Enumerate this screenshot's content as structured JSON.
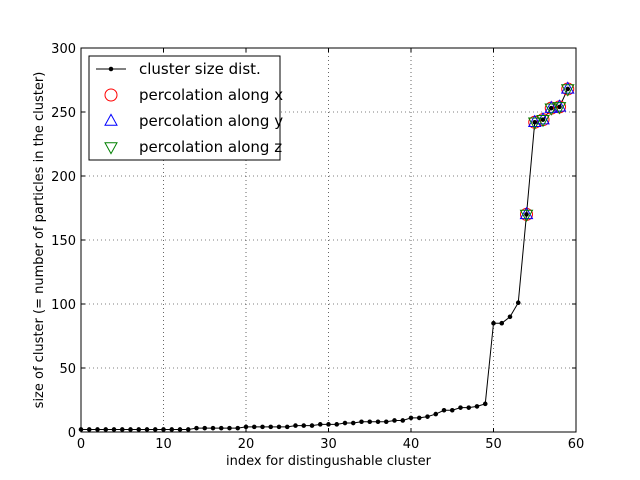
{
  "chart_data": {
    "type": "line",
    "xlabel": "index for distingushable cluster",
    "ylabel": "size of cluster (= number of particles in the cluster)",
    "xlim": [
      0,
      60
    ],
    "ylim": [
      0,
      300
    ],
    "x_ticks": [
      0,
      10,
      20,
      30,
      40,
      50,
      60
    ],
    "y_ticks": [
      0,
      50,
      100,
      150,
      200,
      250,
      300
    ],
    "grid": true,
    "legend_position": "top-left",
    "series": [
      {
        "name": "cluster size dist.",
        "color": "#000000",
        "marker": "dot",
        "x": [
          0,
          1,
          2,
          3,
          4,
          5,
          6,
          7,
          8,
          9,
          10,
          11,
          12,
          13,
          14,
          15,
          16,
          17,
          18,
          19,
          20,
          21,
          22,
          23,
          24,
          25,
          26,
          27,
          28,
          29,
          30,
          31,
          32,
          33,
          34,
          35,
          36,
          37,
          38,
          39,
          40,
          41,
          42,
          43,
          44,
          45,
          46,
          47,
          48,
          49,
          50,
          51,
          52,
          53,
          54,
          55,
          56,
          57,
          58,
          59
        ],
        "y": [
          2,
          2,
          2,
          2,
          2,
          2,
          2,
          2,
          2,
          2,
          2,
          2,
          2,
          2,
          3,
          3,
          3,
          3,
          3,
          3,
          4,
          4,
          4,
          4,
          4,
          4,
          5,
          5,
          5,
          6,
          6,
          6,
          7,
          7,
          8,
          8,
          8,
          8,
          9,
          9,
          11,
          11,
          12,
          14,
          17,
          17,
          19,
          19,
          20,
          22,
          85,
          85,
          90,
          101,
          170,
          242,
          244,
          253,
          254,
          268
        ]
      },
      {
        "name": "percolation along x",
        "color": "#ff0000",
        "marker": "circle",
        "x": [
          54,
          55,
          56,
          57,
          58,
          59
        ],
        "y": [
          170,
          242,
          244,
          253,
          254,
          268
        ]
      },
      {
        "name": "percolation along y",
        "color": "#0000ff",
        "marker": "triangle-up",
        "x": [
          54,
          55,
          56,
          57,
          58,
          59
        ],
        "y": [
          170,
          242,
          244,
          253,
          254,
          268
        ]
      },
      {
        "name": "percolation along z",
        "color": "#008000",
        "marker": "triangle-down",
        "x": [
          54,
          55,
          56,
          57,
          58,
          59
        ],
        "y": [
          170,
          242,
          244,
          253,
          254,
          268
        ]
      }
    ]
  }
}
